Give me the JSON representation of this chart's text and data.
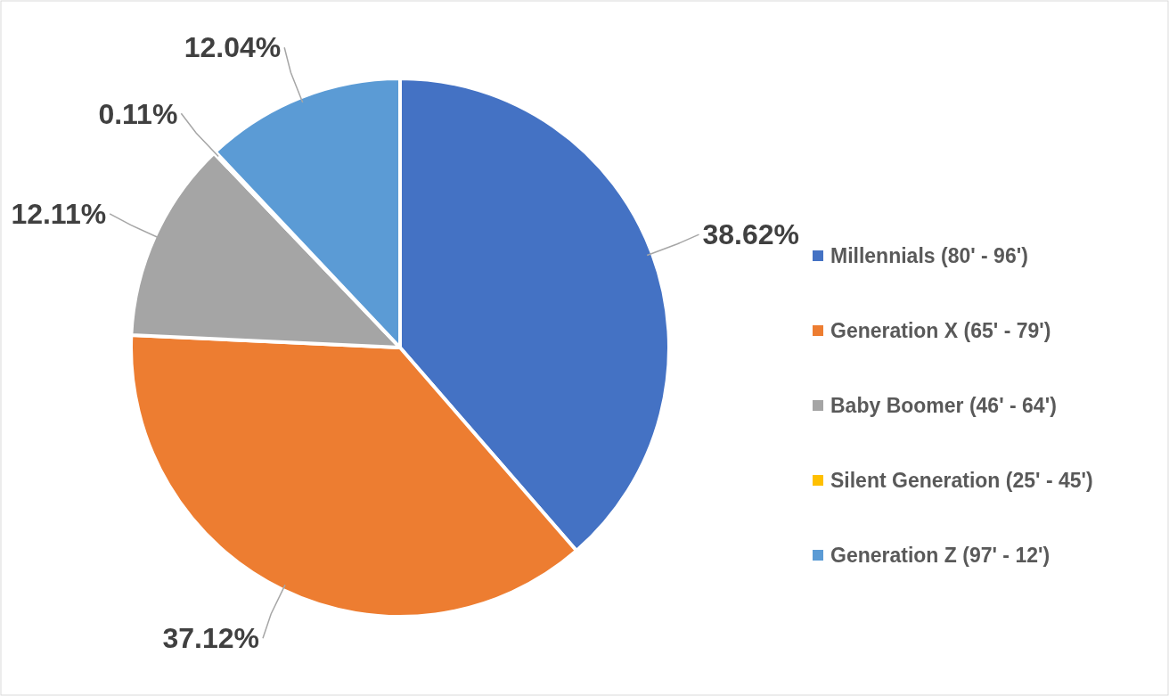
{
  "chart_data": {
    "type": "pie",
    "categories": [
      "Millennials (80' - 96')",
      "Generation X (65' - 79')",
      "Baby Boomer (46' - 64')",
      "Silent Generation (25' - 45')",
      "Generation Z (97' - 12')"
    ],
    "values": [
      38.62,
      37.12,
      12.11,
      0.11,
      12.04
    ],
    "colors": [
      "#4472c4",
      "#ed7d31",
      "#a5a5a5",
      "#ffc000",
      "#5b9bd5"
    ],
    "value_labels": [
      "38.62%",
      "37.12%",
      "12.11%",
      "0.11%",
      "12.04%"
    ],
    "legend": "right"
  }
}
